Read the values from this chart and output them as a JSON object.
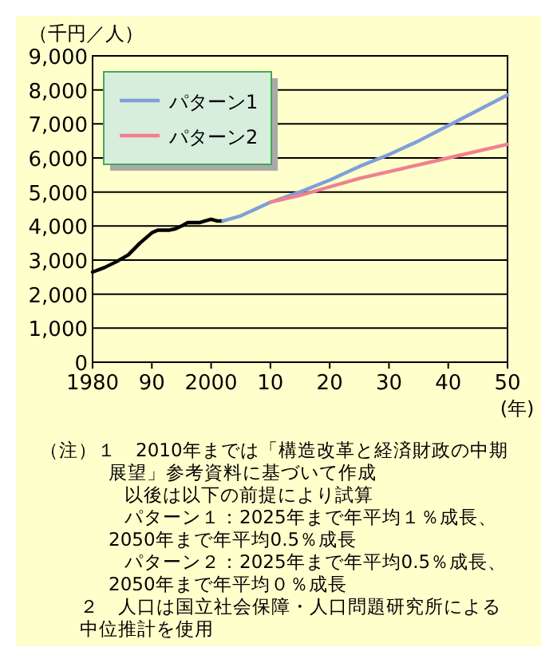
{
  "chart_data": {
    "type": "line",
    "ylabel": "（千円／人）",
    "xlabel": "(年)",
    "xlim": [
      1980,
      2050
    ],
    "ylim": [
      0,
      9000
    ],
    "xticks": [
      1980,
      {
        "value": 1990,
        "label": "90"
      },
      2000,
      {
        "value": 2010,
        "label": "10"
      },
      {
        "value": 2020,
        "label": "20"
      },
      {
        "value": 2030,
        "label": "30"
      },
      {
        "value": 2040,
        "label": "40"
      },
      {
        "value": 2050,
        "label": "50"
      }
    ],
    "yticks": [
      0,
      {
        "value": 1000,
        "label": "1,000"
      },
      {
        "value": 2000,
        "label": "2,000"
      },
      {
        "value": 3000,
        "label": "3,000"
      },
      {
        "value": 4000,
        "label": "4,000"
      },
      {
        "value": 5000,
        "label": "5,000"
      },
      {
        "value": 6000,
        "label": "6,000"
      },
      {
        "value": 7000,
        "label": "7,000"
      },
      {
        "value": 8000,
        "label": "8,000"
      },
      {
        "value": 9000,
        "label": "9,000"
      }
    ],
    "grid": "y",
    "legend": "top left",
    "series": [
      {
        "color": "#000000",
        "x": [
          1980,
          1982,
          1984,
          1986,
          1988,
          1990,
          1991,
          1993,
          1994,
          1995,
          1996,
          1998,
          1999,
          2000,
          2001,
          2002
        ],
        "values": [
          2650,
          2780,
          2950,
          3150,
          3500,
          3800,
          3880,
          3880,
          3920,
          4000,
          4100,
          4100,
          4150,
          4200,
          4150,
          4150
        ]
      },
      {
        "name": "パターン1",
        "color": "#7f9fd8",
        "x": [
          2002,
          2005,
          2010,
          2015,
          2020,
          2025,
          2030,
          2035,
          2040,
          2045,
          2050
        ],
        "values": [
          4150,
          4300,
          4700,
          5000,
          5350,
          5750,
          6100,
          6500,
          6950,
          7400,
          7850
        ]
      },
      {
        "name": "パターン2",
        "color": "#f08090",
        "x": [
          2010,
          2015,
          2020,
          2025,
          2030,
          2035,
          2040,
          2045,
          2050
        ],
        "values": [
          4700,
          4900,
          5150,
          5400,
          5600,
          5800,
          6000,
          6200,
          6400
        ]
      }
    ],
    "annotations": [
      "（注）１　2010年までは「構造改革と経済財政の中期",
      "展望」参考資料に基づいて作成",
      "以後は以下の前提により試算",
      "パターン１：2025年まで年平均１％成長、",
      "2050年まで年平均0.5％成長",
      "パターン２：2025年まで年平均0.5％成長、",
      "2050年まで年平均０％成長",
      "２　人口は国立社会保障・人口問題研究所による",
      "中位推計を使用"
    ]
  }
}
